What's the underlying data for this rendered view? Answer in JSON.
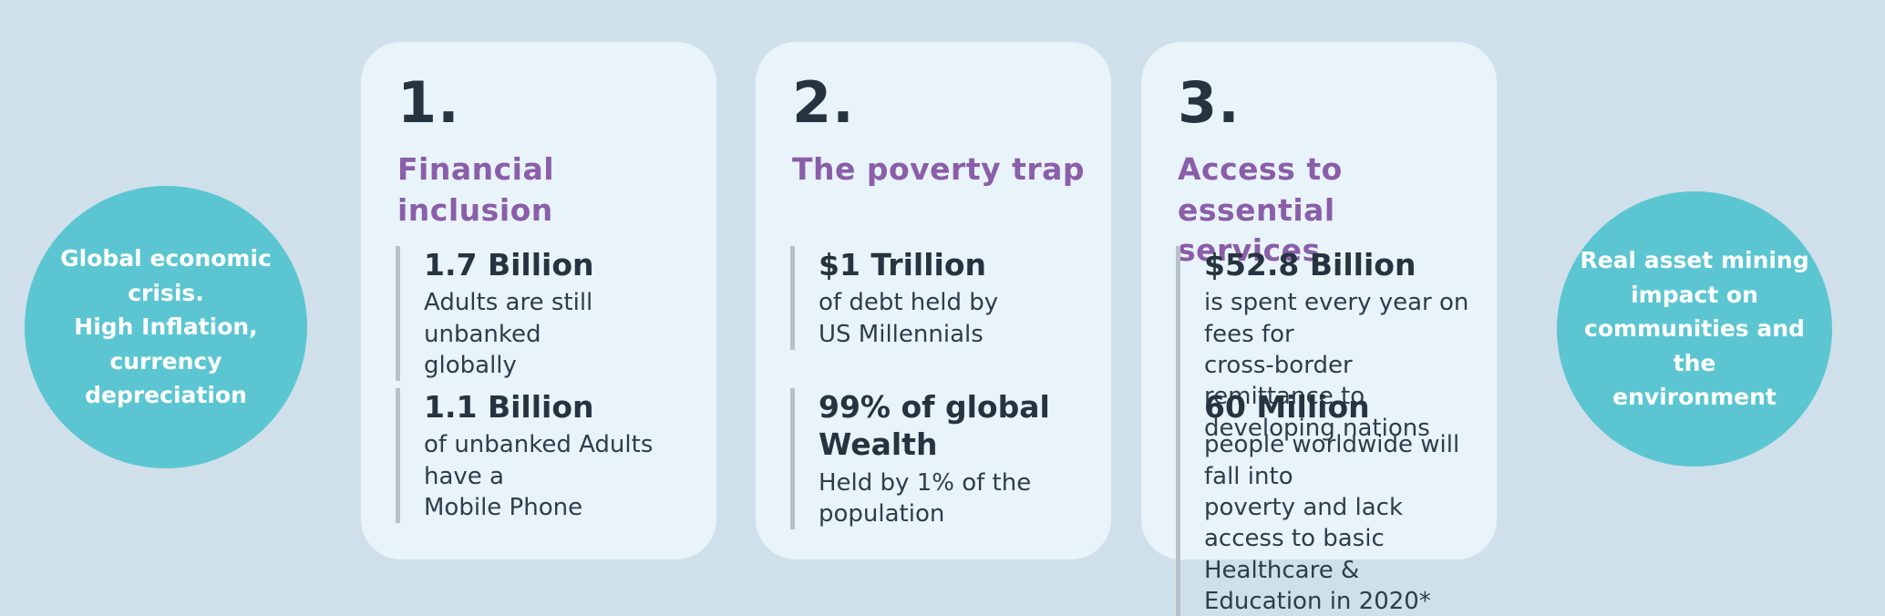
{
  "colors": {
    "background": "#cfe0ea",
    "card_background": "#e8f3fa",
    "bubble_teal": "#5bc6d1",
    "title_purple": "#8a5ea8",
    "text_dark_navy": "#25343f",
    "stat_bar_gray": "#b6c2c8",
    "bubble_text_white": "#ffffff"
  },
  "left_bubble": {
    "text": "Global economic\ncrisis.\nHigh Inflation,\ncurrency\ndepreciation"
  },
  "right_bubble": {
    "text": "Real asset  mining\nimpact on\ncommunities and the\nenvironment"
  },
  "cards": [
    {
      "number": "1.",
      "title": "Financial inclusion",
      "stats": [
        {
          "value": "1.7 Billion",
          "desc": "Adults are still unbanked\nglobally"
        },
        {
          "value": "1.1 Billion",
          "desc": "of unbanked Adults have a\nMobile Phone"
        }
      ]
    },
    {
      "number": "2.",
      "title": "The poverty trap",
      "stats": [
        {
          "value": "$1 Trillion",
          "desc": "of debt held by\nUS Millennials"
        },
        {
          "value": "99% of global Wealth",
          "desc": "Held by 1% of the\npopulation"
        }
      ]
    },
    {
      "number": "3.",
      "title": "Access to essential\nservices",
      "stats": [
        {
          "value": "$52.8 Billion",
          "desc": "is spent every year on fees for\ncross-border remittance to\ndeveloping nations"
        },
        {
          "value": "60 Million",
          "desc": "people worldwide will fall into\npoverty and lack access to basic\nHealthcare & Education in 2020*"
        }
      ]
    }
  ]
}
